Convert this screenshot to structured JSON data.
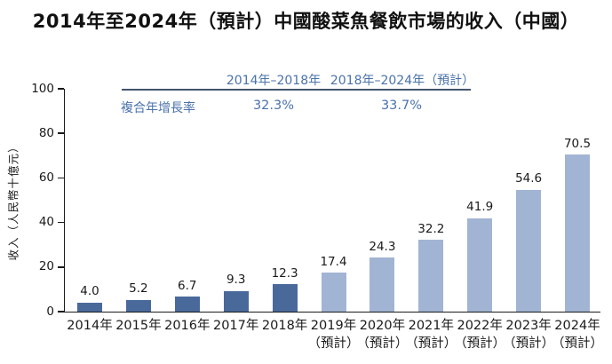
{
  "title": "2014年至2024年（預計）中國酸菜魚餐飲市場的收入（中國）",
  "cagr_table": {
    "row_label": "複合年增長率",
    "columns": [
      {
        "period": "2014年–2018年",
        "value": "32.3%"
      },
      {
        "period": "2018年–2024年（預計）",
        "value": "33.7%"
      }
    ]
  },
  "colors": {
    "actual_bar": "#49699b",
    "forecast_bar": "#a2b4d3",
    "cagr_text": "#4a72ab",
    "rule": "#44546e",
    "axis_text": "#1a1a1a"
  },
  "chart_data": {
    "type": "bar",
    "title": "2014年至2024年（預計）中國酸菜魚餐飲市場的收入（中國）",
    "xlabel": "",
    "ylabel": "收入（人民幣十億元）",
    "ylim": [
      0,
      100
    ],
    "yticks": [
      0,
      20,
      40,
      60,
      80,
      100
    ],
    "grid": false,
    "legend": false,
    "categories": [
      "2014年",
      "2015年",
      "2016年",
      "2017年",
      "2018年",
      "2019年（預計）",
      "2020年（預計）",
      "2021年（預計）",
      "2022年（預計）",
      "2023年（預計）",
      "2024年（預計）"
    ],
    "values": [
      4.0,
      5.2,
      6.7,
      9.3,
      12.3,
      17.4,
      24.3,
      32.2,
      41.9,
      54.6,
      70.5
    ],
    "bars": [
      {
        "label": "2014年",
        "sublabel": "",
        "value": 4.0,
        "display": "4.0",
        "group": "actual"
      },
      {
        "label": "2015年",
        "sublabel": "",
        "value": 5.2,
        "display": "5.2",
        "group": "actual"
      },
      {
        "label": "2016年",
        "sublabel": "",
        "value": 6.7,
        "display": "6.7",
        "group": "actual"
      },
      {
        "label": "2017年",
        "sublabel": "",
        "value": 9.3,
        "display": "9.3",
        "group": "actual"
      },
      {
        "label": "2018年",
        "sublabel": "",
        "value": 12.3,
        "display": "12.3",
        "group": "actual"
      },
      {
        "label": "2019年",
        "sublabel": "（預計）",
        "value": 17.4,
        "display": "17.4",
        "group": "forecast"
      },
      {
        "label": "2020年",
        "sublabel": "（預計）",
        "value": 24.3,
        "display": "24.3",
        "group": "forecast"
      },
      {
        "label": "2021年",
        "sublabel": "（預計）",
        "value": 32.2,
        "display": "32.2",
        "group": "forecast"
      },
      {
        "label": "2022年",
        "sublabel": "（預計）",
        "value": 41.9,
        "display": "41.9",
        "group": "forecast"
      },
      {
        "label": "2023年",
        "sublabel": "（預計）",
        "value": 54.6,
        "display": "54.6",
        "group": "forecast"
      },
      {
        "label": "2024年",
        "sublabel": "（預計）",
        "value": 70.5,
        "display": "70.5",
        "group": "forecast"
      }
    ]
  }
}
